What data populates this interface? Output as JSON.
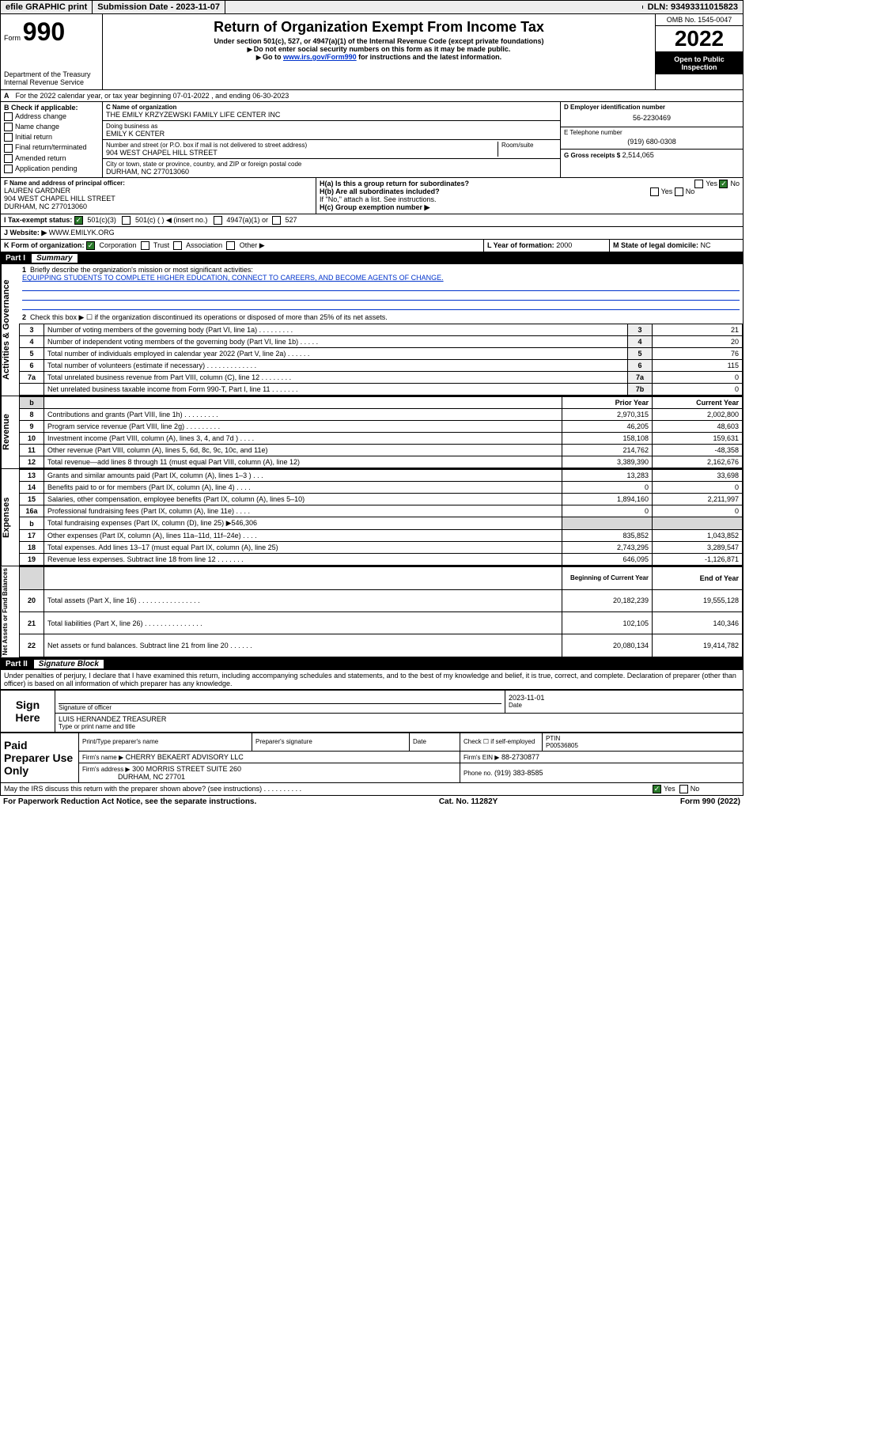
{
  "topbar": {
    "efile": "efile GRAPHIC print",
    "subdate_label": "Submission Date - 2023-11-07",
    "dln": "DLN: 93493311015823"
  },
  "header": {
    "form_label_small": "Form",
    "form_label_big": "990",
    "title": "Return of Organization Exempt From Income Tax",
    "sub1": "Under section 501(c), 527, or 4947(a)(1) of the Internal Revenue Code (except private foundations)",
    "sub2": "Do not enter social security numbers on this form as it may be made public.",
    "sub3_pre": "Go to ",
    "sub3_link": "www.irs.gov/Form990",
    "sub3_post": " for instructions and the latest information.",
    "dept": "Department of the Treasury",
    "irs": "Internal Revenue Service",
    "omb": "OMB No. 1545-0047",
    "year": "2022",
    "open": "Open to Public Inspection"
  },
  "lineA": "For the 2022 calendar year, or tax year beginning 07-01-2022   , and ending 06-30-2023",
  "boxB": {
    "label": "B Check if applicable:",
    "items": [
      "Address change",
      "Name change",
      "Initial return",
      "Final return/terminated",
      "Amended return",
      "Application pending"
    ]
  },
  "boxC": {
    "label": "C Name of organization",
    "name": "THE EMILY KRZYZEWSKI FAMILY LIFE CENTER INC",
    "dba_label": "Doing business as",
    "dba": "EMILY K CENTER",
    "addr_label": "Number and street (or P.O. box if mail is not delivered to street address)",
    "room_label": "Room/suite",
    "addr": "904 WEST CHAPEL HILL STREET",
    "city_label": "City or town, state or province, country, and ZIP or foreign postal code",
    "city": "DURHAM, NC  277013060"
  },
  "boxD": {
    "label": "D Employer identification number",
    "value": "56-2230469"
  },
  "boxE": {
    "label": "E Telephone number",
    "value": "(919) 680-0308"
  },
  "boxG": {
    "label": "G Gross receipts $",
    "value": "2,514,065"
  },
  "boxF": {
    "label": "F Name and address of principal officer:",
    "name": "LAUREN GARDNER",
    "addr1": "904 WEST CHAPEL HILL STREET",
    "addr2": "DURHAM, NC  277013060"
  },
  "boxH": {
    "a": "H(a)  Is this a group return for subordinates?",
    "b": "H(b)  Are all subordinates included?",
    "note": "If \"No,\" attach a list. See instructions.",
    "c": "H(c)  Group exemption number ▶"
  },
  "boxI": {
    "label": "I   Tax-exempt status:",
    "opts": [
      "501(c)(3)",
      "501(c) (   ) ◀ (insert no.)",
      "4947(a)(1) or",
      "527"
    ]
  },
  "boxJ": {
    "label": "J   Website: ▶",
    "value": "WWW.EMILYK.ORG"
  },
  "boxK": {
    "label": "K Form of organization:",
    "opts": [
      "Corporation",
      "Trust",
      "Association",
      "Other ▶"
    ]
  },
  "boxL": {
    "label": "L Year of formation:",
    "value": "2000"
  },
  "boxM": {
    "label": "M State of legal domicile:",
    "value": "NC"
  },
  "part1": {
    "label": "Part I",
    "title": "Summary"
  },
  "summary": {
    "q1": "Briefly describe the organization's mission or most significant activities:",
    "mission": "EQUIPPING STUDENTS TO COMPLETE HIGHER EDUCATION, CONNECT TO CAREERS, AND BECOME AGENTS OF CHANGE.",
    "q2": "Check this box ▶ ☐  if the organization discontinued its operations or disposed of more than 25% of its net assets."
  },
  "gov_lines": [
    {
      "n": "3",
      "desc": "Number of voting members of the governing body (Part VI, line 1a)  .    .    .    .    .    .    .    .    .",
      "box": "3",
      "val": "21"
    },
    {
      "n": "4",
      "desc": "Number of independent voting members of the governing body (Part VI, line 1b)   .    .    .    .    .",
      "box": "4",
      "val": "20"
    },
    {
      "n": "5",
      "desc": "Total number of individuals employed in calendar year 2022 (Part V, line 2a)   .    .    .    .    .    .",
      "box": "5",
      "val": "76"
    },
    {
      "n": "6",
      "desc": "Total number of volunteers (estimate if necessary)   .    .    .    .    .    .    .    .    .    .    .    .    .",
      "box": "6",
      "val": "115"
    },
    {
      "n": "7a",
      "desc": "Total unrelated business revenue from Part VIII, column (C), line 12   .    .    .    .    .    .    .    .",
      "box": "7a",
      "val": "0"
    },
    {
      "n": "",
      "desc": "Net unrelated business taxable income from Form 990-T, Part I, line 11   .    .    .    .    .    .    .",
      "box": "7b",
      "val": "0"
    }
  ],
  "cols": {
    "prior": "Prior Year",
    "current": "Current Year"
  },
  "revenue": [
    {
      "n": "8",
      "desc": "Contributions and grants (Part VIII, line 1h)   .    .    .    .    .    .    .    .    .",
      "p": "2,970,315",
      "c": "2,002,800"
    },
    {
      "n": "9",
      "desc": "Program service revenue (Part VIII, line 2g)   .    .    .    .    .    .    .    .    .",
      "p": "46,205",
      "c": "48,603"
    },
    {
      "n": "10",
      "desc": "Investment income (Part VIII, column (A), lines 3, 4, and 7d )   .    .    .    .",
      "p": "158,108",
      "c": "159,631"
    },
    {
      "n": "11",
      "desc": "Other revenue (Part VIII, column (A), lines 5, 6d, 8c, 9c, 10c, and 11e)",
      "p": "214,762",
      "c": "-48,358"
    },
    {
      "n": "12",
      "desc": "Total revenue—add lines 8 through 11 (must equal Part VIII, column (A), line 12)",
      "p": "3,389,390",
      "c": "2,162,676"
    }
  ],
  "expenses": [
    {
      "n": "13",
      "desc": "Grants and similar amounts paid (Part IX, column (A), lines 1–3 )   .    .    .",
      "p": "13,283",
      "c": "33,698"
    },
    {
      "n": "14",
      "desc": "Benefits paid to or for members (Part IX, column (A), line 4)   .    .    .    .",
      "p": "0",
      "c": "0"
    },
    {
      "n": "15",
      "desc": "Salaries, other compensation, employee benefits (Part IX, column (A), lines 5–10)",
      "p": "1,894,160",
      "c": "2,211,997"
    },
    {
      "n": "16a",
      "desc": "Professional fundraising fees (Part IX, column (A), line 11e)   .    .    .    .",
      "p": "0",
      "c": "0"
    }
  ],
  "line_b": {
    "n": "b",
    "desc_pre": "Total fundraising expenses (Part IX, column (D), line 25) ▶",
    "val": "546,306"
  },
  "expenses2": [
    {
      "n": "17",
      "desc": "Other expenses (Part IX, column (A), lines 11a–11d, 11f–24e)   .    .    .    .",
      "p": "835,852",
      "c": "1,043,852"
    },
    {
      "n": "18",
      "desc": "Total expenses. Add lines 13–17 (must equal Part IX, column (A), line 25)",
      "p": "2,743,295",
      "c": "3,289,547"
    },
    {
      "n": "19",
      "desc": "Revenue less expenses. Subtract line 18 from line 12   .    .    .    .    .    .    .",
      "p": "646,095",
      "c": "-1,126,871"
    }
  ],
  "cols2": {
    "beg": "Beginning of Current Year",
    "end": "End of Year"
  },
  "netassets": [
    {
      "n": "20",
      "desc": "Total assets (Part X, line 16)   .    .    .    .    .    .    .    .    .    .    .    .    .    .    .    .",
      "p": "20,182,239",
      "c": "19,555,128"
    },
    {
      "n": "21",
      "desc": "Total liabilities (Part X, line 26)   .    .    .    .    .    .    .    .    .    .    .    .    .    .    .",
      "p": "102,105",
      "c": "140,346"
    },
    {
      "n": "22",
      "desc": "Net assets or fund balances. Subtract line 21 from line 20   .    .    .    .    .    .",
      "p": "20,080,134",
      "c": "19,414,782"
    }
  ],
  "part2": {
    "label": "Part II",
    "title": "Signature Block"
  },
  "penalties": "Under penalties of perjury, I declare that I have examined this return, including accompanying schedules and statements, and to the best of my knowledge and belief, it is true, correct, and complete. Declaration of preparer (other than officer) is based on all information of which preparer has any knowledge.",
  "sign": {
    "here": "Sign Here",
    "sig_label": "Signature of officer",
    "date": "2023-11-01",
    "date_label": "Date",
    "name": "LUIS HERNANDEZ  TREASURER",
    "name_label": "Type or print name and title"
  },
  "paid": {
    "title": "Paid Preparer Use Only",
    "h1": "Print/Type preparer's name",
    "h2": "Preparer's signature",
    "h3": "Date",
    "h4_pre": "Check ☐ if self-employed",
    "h5": "PTIN",
    "ptin": "P00536805",
    "firm_label": "Firm's name    ▶",
    "firm": "CHERRY BEKAERT ADVISORY LLC",
    "ein_label": "Firm's EIN ▶",
    "ein": "88-2730877",
    "addr_label": "Firm's address ▶",
    "addr1": "300 MORRIS STREET SUITE 260",
    "addr2": "DURHAM, NC  27701",
    "phone_label": "Phone no.",
    "phone": "(919) 383-8585"
  },
  "discuss": "May the IRS discuss this return with the preparer shown above? (see instructions)   .    .    .    .    .    .    .    .    .    .",
  "yes": "Yes",
  "no": "No",
  "footer": {
    "left": "For Paperwork Reduction Act Notice, see the separate instructions.",
    "mid": "Cat. No. 11282Y",
    "right": "Form 990 (2022)"
  },
  "side_labels": {
    "gov": "Activities & Governance",
    "rev": "Revenue",
    "exp": "Expenses",
    "net": "Net Assets or Fund Balances"
  }
}
